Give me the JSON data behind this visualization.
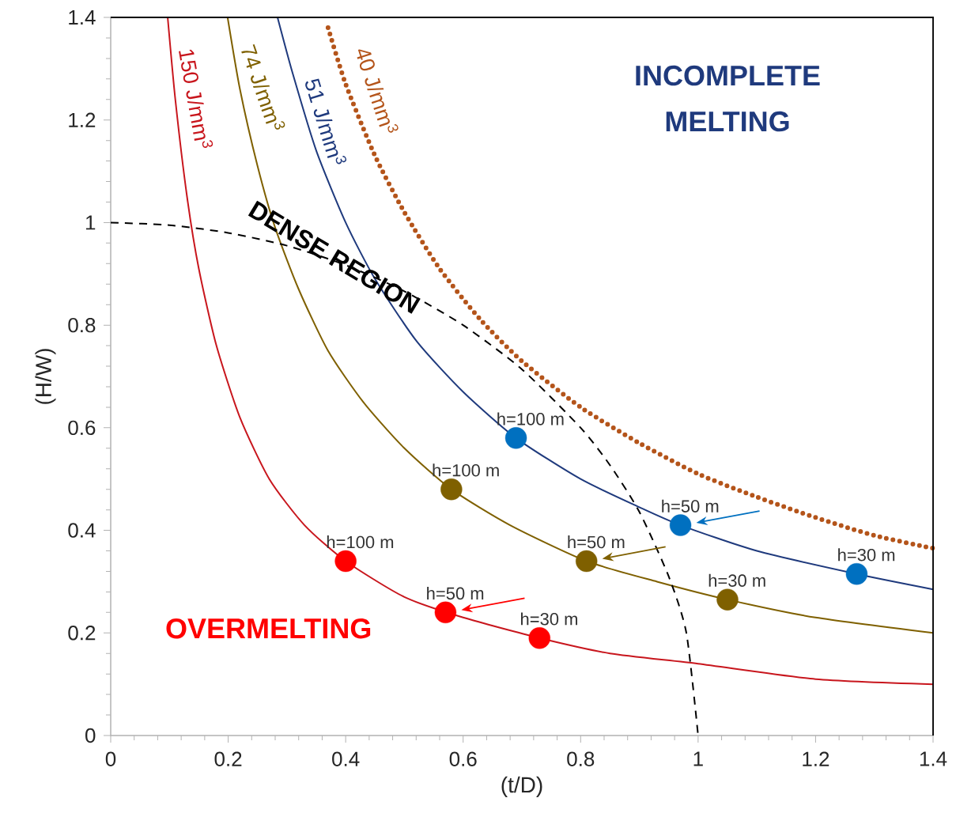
{
  "chart_data": {
    "type": "line",
    "xlabel": "(t/D)",
    "ylabel": "(H/W)",
    "xlim": [
      0,
      1.4
    ],
    "ylim": [
      0,
      1.4
    ],
    "xticks": [
      0,
      0.2,
      0.4,
      0.6,
      0.8,
      1,
      1.2,
      1.4
    ],
    "yticks": [
      0,
      0.2,
      0.4,
      0.6,
      0.8,
      1,
      1.2,
      1.4
    ],
    "series": [
      {
        "name": "150 J/mm$^{3}$",
        "color": "#c8161d",
        "line_style": "solid",
        "marker": "none",
        "x": [
          0.097,
          0.11,
          0.13,
          0.15,
          0.18,
          0.22,
          0.27,
          0.33,
          0.4,
          0.5,
          0.6,
          0.73,
          0.85,
          1.0,
          1.2,
          1.4
        ],
        "values": [
          1.4,
          1.24,
          1.05,
          0.91,
          0.76,
          0.62,
          0.5,
          0.41,
          0.34,
          0.27,
          0.23,
          0.19,
          0.16,
          0.14,
          0.11,
          0.1
        ]
      },
      {
        "name": "74 J/mm$^{3}$",
        "color": "#7f6000",
        "line_style": "solid",
        "marker": "none",
        "x": [
          0.199,
          0.22,
          0.25,
          0.28,
          0.32,
          0.37,
          0.43,
          0.5,
          0.58,
          0.68,
          0.81,
          0.93,
          1.05,
          1.2,
          1.4
        ],
        "values": [
          1.4,
          1.26,
          1.11,
          0.99,
          0.87,
          0.75,
          0.65,
          0.56,
          0.48,
          0.41,
          0.34,
          0.3,
          0.265,
          0.23,
          0.2
        ]
      },
      {
        "name": "51 J/mm$^{3}$",
        "color": "#1f3a7d",
        "line_style": "solid",
        "marker": "none",
        "x": [
          0.284,
          0.31,
          0.35,
          0.4,
          0.45,
          0.52,
          0.6,
          0.69,
          0.8,
          0.9,
          0.97,
          1.1,
          1.27,
          1.4
        ],
        "values": [
          1.4,
          1.29,
          1.14,
          1.0,
          0.89,
          0.77,
          0.67,
          0.58,
          0.5,
          0.445,
          0.41,
          0.36,
          0.315,
          0.285
        ]
      },
      {
        "name": "40 J/mm$^{3}$",
        "color": "#b4541a",
        "line_style": "dotted",
        "marker": "none",
        "x": [
          0.37,
          0.4,
          0.45,
          0.5,
          0.56,
          0.63,
          0.7,
          0.8,
          0.9,
          1.0,
          1.1,
          1.2,
          1.3,
          1.4
        ],
        "values": [
          1.38,
          1.27,
          1.13,
          1.02,
          0.91,
          0.81,
          0.73,
          0.64,
          0.57,
          0.51,
          0.465,
          0.425,
          0.39,
          0.365
        ]
      },
      {
        "color": "#000000",
        "line_style": "dashed",
        "marker": "none",
        "x": [
          0,
          0.1,
          0.2,
          0.3,
          0.4,
          0.5,
          0.6,
          0.7,
          0.8,
          0.85,
          0.9,
          0.95,
          0.98,
          1.0
        ],
        "values": [
          1.0,
          0.995,
          0.98,
          0.955,
          0.917,
          0.866,
          0.8,
          0.714,
          0.6,
          0.527,
          0.436,
          0.31,
          0.2,
          0.0
        ]
      },
      {
        "type": "scatter",
        "color": "#ff0000",
        "marker": "circle",
        "x": [
          0.4,
          0.57,
          0.73
        ],
        "values": [
          0.34,
          0.24,
          0.19
        ]
      },
      {
        "type": "scatter",
        "color": "#7f6000",
        "marker": "circle",
        "x": [
          0.58,
          0.81,
          1.05
        ],
        "values": [
          0.48,
          0.34,
          0.265
        ]
      },
      {
        "type": "scatter",
        "color": "#0070c0",
        "marker": "circle",
        "x": [
          0.69,
          0.97,
          1.27
        ],
        "values": [
          0.58,
          0.41,
          0.315
        ]
      }
    ],
    "annotations": [
      "INCOMPLETE MELTING",
      "OVERMELTING",
      {
        "text": "DENSE REGION",
        "x": 0.37,
        "y": 0.93
      },
      {
        "text": "h=100  m",
        "x": 0.4,
        "y": 0.34
      },
      {
        "text": "h=50  m",
        "x": 0.57,
        "y": 0.24
      },
      {
        "text": "h=30  m",
        "x": 0.73,
        "y": 0.19
      },
      {
        "text": "h=100  m",
        "x": 0.58,
        "y": 0.48
      },
      {
        "text": "h=50  m",
        "x": 0.81,
        "y": 0.34
      },
      {
        "text": "h=30  m",
        "x": 1.05,
        "y": 0.265
      },
      {
        "text": "h=100  m",
        "x": 0.69,
        "y": 0.58
      },
      {
        "text": "h=50  m",
        "x": 0.97,
        "y": 0.41
      },
      {
        "text": "h=30  m",
        "x": 1.27,
        "y": 0.315
      }
    ]
  }
}
